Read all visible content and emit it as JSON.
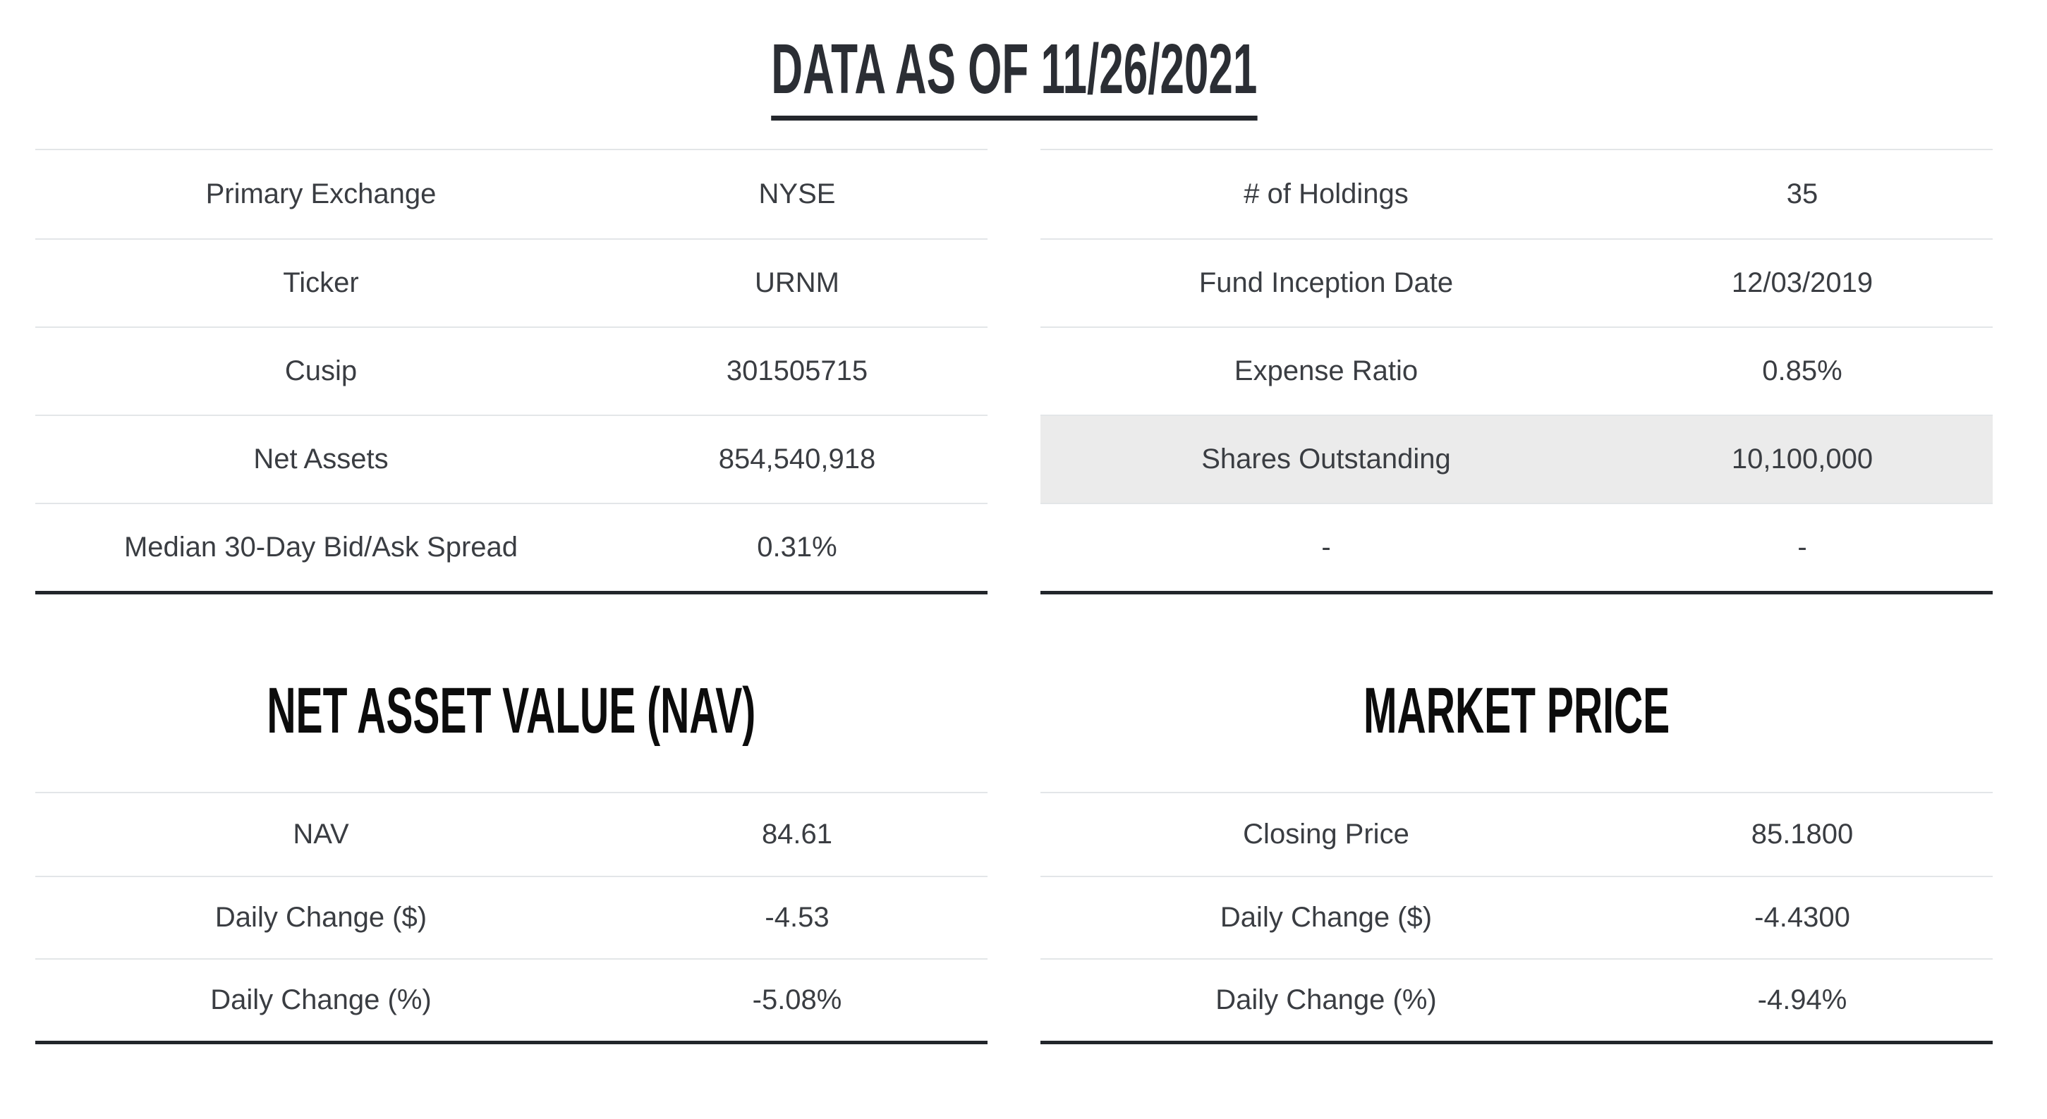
{
  "page_title": "DATA AS OF 11/26/2021",
  "colors": {
    "title_text": "#2b2e34",
    "section_title_text": "#0c0c0c",
    "body_text": "#3a3d42",
    "separator_light": "#e3e6e8",
    "border_dark": "#22262b",
    "highlight_row_bg": "#ebebeb"
  },
  "fund_left": {
    "rows": [
      {
        "label": "Primary Exchange",
        "value": "NYSE"
      },
      {
        "label": "Ticker",
        "value": "URNM"
      },
      {
        "label": "Cusip",
        "value": "301505715"
      },
      {
        "label": "Net Assets",
        "value": "854,540,918"
      },
      {
        "label": "Median 30-Day Bid/Ask Spread",
        "value": "0.31%"
      }
    ]
  },
  "fund_right": {
    "rows": [
      {
        "label": "# of Holdings",
        "value": "35"
      },
      {
        "label": "Fund Inception Date",
        "value": "12/03/2019"
      },
      {
        "label": "Expense Ratio",
        "value": "0.85%"
      },
      {
        "label": "Shares Outstanding",
        "value": "10,100,000"
      },
      {
        "label": "-",
        "value": "-"
      }
    ]
  },
  "nav_section": {
    "title": "NET ASSET VALUE (NAV)",
    "rows": [
      {
        "label": "NAV",
        "value": "84.61"
      },
      {
        "label": "Daily Change ($)",
        "value": "-4.53"
      },
      {
        "label": "Daily Change (%)",
        "value": "-5.08%"
      }
    ]
  },
  "market_section": {
    "title": "MARKET PRICE",
    "rows": [
      {
        "label": "Closing Price",
        "value": "85.1800"
      },
      {
        "label": "Daily Change ($)",
        "value": "-4.4300"
      },
      {
        "label": "Daily Change (%)",
        "value": "-4.94%"
      }
    ]
  }
}
